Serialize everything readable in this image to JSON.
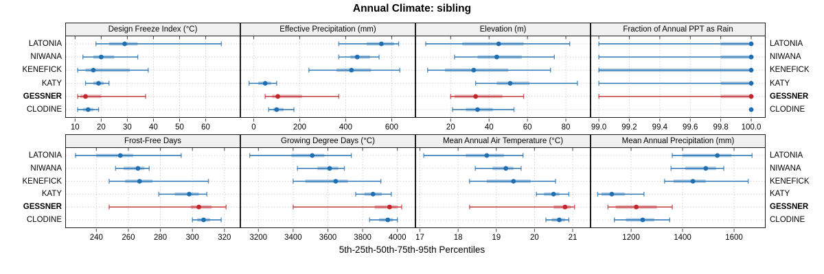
{
  "title": "Annual Climate: sibling",
  "caption": "5th-25th-50th-75th-95th Percentiles",
  "stations": [
    "LATONIA",
    "NIWANA",
    "KENEFICK",
    "KATY",
    "GESSNER",
    "CLODINE"
  ],
  "highlight_station": "GESSNER",
  "colors": {
    "series_blue": "#1f6eb0",
    "series_red": "#c0282d",
    "grid": "#c9c9c9",
    "header_bg": "#f0f0f0",
    "panel_border": "#1a1a1a",
    "tick": "#444444"
  },
  "chart_data": {
    "type": "dotplot-percentiles",
    "title": "Annual Climate: sibling",
    "xlabel": "5th-25th-50th-75th-95th Percentiles",
    "percentiles": [
      "5th",
      "25th",
      "50th",
      "75th",
      "95th"
    ],
    "stations": [
      "LATONIA",
      "NIWANA",
      "KENEFICK",
      "KATY",
      "GESSNER",
      "CLODINE"
    ],
    "grid": "dotted",
    "panels": [
      {
        "label": "Design Freeze Index (°C)",
        "xlim": [
          6.5,
          73
        ],
        "ticks": [
          10,
          20,
          30,
          40,
          50,
          60
        ],
        "tick_labels": [
          "10",
          "20",
          "30",
          "40",
          "50",
          "60"
        ],
        "series": [
          [
            18,
            23,
            29,
            34,
            66
          ],
          [
            13,
            17,
            20,
            25,
            34
          ],
          [
            11,
            14,
            17,
            31,
            38
          ],
          [
            14,
            17,
            19,
            21,
            23
          ],
          [
            11,
            12,
            14,
            20,
            37
          ],
          [
            11,
            13,
            15,
            17,
            19
          ]
        ]
      },
      {
        "label": "Effective Precipitation (mm)",
        "xlim": [
          -55,
          700
        ],
        "ticks": [
          0,
          200,
          400,
          600
        ],
        "tick_labels": [
          "0",
          "200",
          "400",
          "600"
        ],
        "series": [
          [
            370,
            490,
            555,
            610,
            630
          ],
          [
            370,
            420,
            450,
            505,
            545
          ],
          [
            240,
            360,
            425,
            510,
            635
          ],
          [
            -20,
            20,
            50,
            75,
            100
          ],
          [
            50,
            80,
            105,
            210,
            370
          ],
          [
            65,
            85,
            100,
            130,
            175
          ]
        ]
      },
      {
        "label": "Elevation (m)",
        "xlim": [
          2,
          92.5
        ],
        "ticks": [
          20,
          40,
          60,
          80
        ],
        "tick_labels": [
          "20",
          "40",
          "60",
          "80"
        ],
        "series": [
          [
            7,
            26,
            45,
            58,
            82
          ],
          [
            22,
            34,
            44,
            57,
            74
          ],
          [
            8,
            17,
            32,
            50,
            72
          ],
          [
            33,
            44,
            51,
            61,
            86
          ],
          [
            20,
            22,
            33,
            47,
            58
          ],
          [
            21,
            28,
            34,
            42,
            53
          ]
        ]
      },
      {
        "label": "Fraction of Annual PPT as Rain",
        "xlim": [
          98.95,
          100.09
        ],
        "ticks": [
          99.0,
          99.2,
          99.4,
          99.6,
          99.8,
          100.0
        ],
        "tick_labels": [
          "99.0",
          "99.2",
          "99.4",
          "99.6",
          "99.8",
          "100.0"
        ],
        "series": [
          [
            99.0,
            99.8,
            100.0,
            100.0,
            100.0
          ],
          [
            99.0,
            99.8,
            100.0,
            100.0,
            100.0
          ],
          [
            99.0,
            99.0,
            100.0,
            100.0,
            100.0
          ],
          [
            99.0,
            99.8,
            100.0,
            100.0,
            100.0
          ],
          [
            99.0,
            99.8,
            100.0,
            100.0,
            100.0
          ],
          [
            100.0,
            100.0,
            100.0,
            100.0,
            100.0
          ]
        ]
      },
      {
        "label": "Frost-Free Days",
        "xlim": [
          221,
          329.5
        ],
        "ticks": [
          240,
          260,
          280,
          300,
          320
        ],
        "tick_labels": [
          "240",
          "260",
          "280",
          "300",
          "320"
        ],
        "series": [
          [
            227,
            240,
            255,
            263,
            293
          ],
          [
            252,
            257,
            266,
            270,
            273
          ],
          [
            248,
            258,
            267,
            275,
            310
          ],
          [
            279,
            289,
            298,
            304,
            309
          ],
          [
            248,
            299,
            304,
            312,
            321
          ],
          [
            300,
            303,
            307,
            311,
            318
          ]
        ]
      },
      {
        "label": "Growing Degree Days (°C)",
        "xlim": [
          3100,
          4100
        ],
        "ticks": [
          3200,
          3400,
          3600,
          3800,
          4000
        ],
        "tick_labels": [
          "3200",
          "3400",
          "3600",
          "3800",
          "4000"
        ],
        "series": [
          [
            3150,
            3390,
            3510,
            3580,
            3735
          ],
          [
            3425,
            3540,
            3610,
            3660,
            3695
          ],
          [
            3400,
            3470,
            3645,
            3715,
            3905
          ],
          [
            3760,
            3810,
            3860,
            3910,
            3965
          ],
          [
            3400,
            3870,
            3955,
            4000,
            4025
          ],
          [
            3840,
            3895,
            3945,
            3975,
            4000
          ]
        ]
      },
      {
        "label": "Mean Annual Air Temperature (°C)",
        "xlim": [
          16.9,
          21.45
        ],
        "ticks": [
          17,
          18,
          19,
          20,
          21
        ],
        "tick_labels": [
          "17",
          "18",
          "19",
          "20",
          "21"
        ],
        "series": [
          [
            17.1,
            18.2,
            18.75,
            19.2,
            19.7
          ],
          [
            18.45,
            18.9,
            19.25,
            19.45,
            19.65
          ],
          [
            18.3,
            18.75,
            19.45,
            19.9,
            20.55
          ],
          [
            20.05,
            20.25,
            20.5,
            20.65,
            20.9
          ],
          [
            18.3,
            20.5,
            20.8,
            20.95,
            21.05
          ],
          [
            20.3,
            20.45,
            20.65,
            20.8,
            20.9
          ]
        ]
      },
      {
        "label": "Mean Annual Precipitation (mm)",
        "xlim": [
          1045,
          1720
        ],
        "ticks": [
          1200,
          1400,
          1600
        ],
        "tick_labels": [
          "1200",
          "1400",
          "1600"
        ],
        "series": [
          [
            1360,
            1400,
            1535,
            1590,
            1670
          ],
          [
            1355,
            1410,
            1490,
            1530,
            1560
          ],
          [
            1330,
            1365,
            1440,
            1490,
            1655
          ],
          [
            1070,
            1085,
            1125,
            1175,
            1250
          ],
          [
            1110,
            1140,
            1220,
            1300,
            1360
          ],
          [
            1135,
            1180,
            1245,
            1290,
            1350
          ]
        ]
      }
    ]
  }
}
